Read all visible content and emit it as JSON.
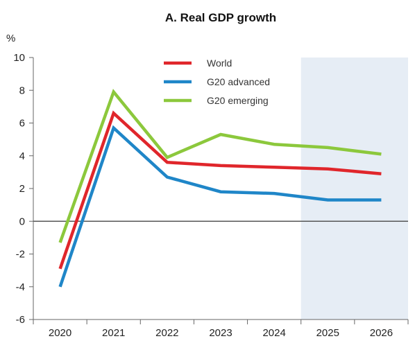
{
  "chart_data": {
    "type": "line",
    "title": "A. Real GDP growth",
    "ylabel": "%",
    "ylim": [
      -6,
      10
    ],
    "yticks": [
      10,
      8,
      6,
      4,
      2,
      0,
      -2,
      -4,
      -6
    ],
    "ytick_labels": [
      "10",
      "8",
      "6",
      "4",
      "2",
      "0",
      "-2",
      "-4",
      "-6"
    ],
    "categories": [
      "2020",
      "2021",
      "2022",
      "2023",
      "2024",
      "2025",
      "2026"
    ],
    "projection_start": "2025",
    "grid": false,
    "legend_position": "top-center",
    "series": [
      {
        "name": "World",
        "color": "#e0262b",
        "values": [
          -2.9,
          6.6,
          3.6,
          3.4,
          3.3,
          3.2,
          2.9
        ]
      },
      {
        "name": "G20 advanced",
        "color": "#1f86c8",
        "values": [
          -4.0,
          5.7,
          2.7,
          1.8,
          1.7,
          1.3,
          1.3
        ]
      },
      {
        "name": "G20 emerging",
        "color": "#8cc83c",
        "values": [
          -1.3,
          7.9,
          3.9,
          5.3,
          4.7,
          4.5,
          4.1
        ]
      }
    ],
    "projection_shade_color": "#e6edf5",
    "zero_line_color": "#555555"
  }
}
